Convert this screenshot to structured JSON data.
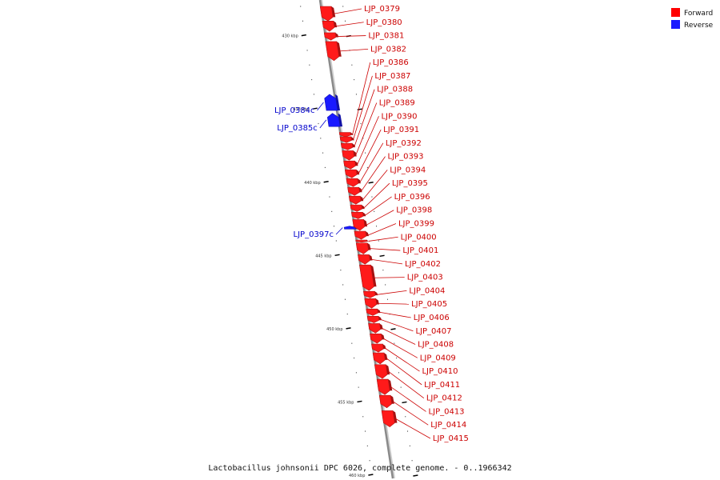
{
  "legend": [
    {
      "label": "Forward",
      "color": "#ff0000"
    },
    {
      "label": "Reverse",
      "color": "#1a1aff"
    }
  ],
  "caption": "Lactobacillus johnsonii DPC 6026, complete genome. - 0..1966342",
  "colors": {
    "forward_fill": "#ff1a1a",
    "forward_label": "#cc0000",
    "reverse_fill": "#1a1aff",
    "reverse_label": "#0000cc",
    "backbone": "#8a8a8a"
  },
  "axis": {
    "start_kbp": 428,
    "end_kbp": 460,
    "major_labels": [
      "430 kbp",
      "435 kbp",
      "440 kbp",
      "445 kbp",
      "450 kbp",
      "455 kbp",
      "460 kbp"
    ]
  },
  "genes": [
    {
      "name": "LJP_0379",
      "strand": "forward",
      "start_kbp": 428.0,
      "end_kbp": 429.0
    },
    {
      "name": "LJP_0380",
      "strand": "forward",
      "start_kbp": 429.0,
      "end_kbp": 429.7
    },
    {
      "name": "LJP_0381",
      "strand": "forward",
      "start_kbp": 429.8,
      "end_kbp": 430.3
    },
    {
      "name": "LJP_0382",
      "strand": "forward",
      "start_kbp": 430.4,
      "end_kbp": 431.7
    },
    {
      "name": "LJP_0384c",
      "strand": "reverse",
      "start_kbp": 434.0,
      "end_kbp": 435.1
    },
    {
      "name": "LJP_0385c",
      "strand": "reverse",
      "start_kbp": 435.3,
      "end_kbp": 436.2
    },
    {
      "name": "LJP_0386",
      "strand": "forward",
      "start_kbp": 436.6,
      "end_kbp": 436.9
    },
    {
      "name": "LJP_0387",
      "strand": "forward",
      "start_kbp": 436.9,
      "end_kbp": 437.3
    },
    {
      "name": "LJP_0388",
      "strand": "forward",
      "start_kbp": 437.35,
      "end_kbp": 437.8
    },
    {
      "name": "LJP_0389",
      "strand": "forward",
      "start_kbp": 437.85,
      "end_kbp": 438.5
    },
    {
      "name": "LJP_0390",
      "strand": "forward",
      "start_kbp": 438.55,
      "end_kbp": 439.1
    },
    {
      "name": "LJP_0391",
      "strand": "forward",
      "start_kbp": 439.15,
      "end_kbp": 439.7
    },
    {
      "name": "LJP_0392",
      "strand": "forward",
      "start_kbp": 439.75,
      "end_kbp": 440.3
    },
    {
      "name": "LJP_0393",
      "strand": "forward",
      "start_kbp": 440.35,
      "end_kbp": 440.9
    },
    {
      "name": "LJP_0394",
      "strand": "forward",
      "start_kbp": 440.95,
      "end_kbp": 441.5
    },
    {
      "name": "LJP_0395",
      "strand": "forward",
      "start_kbp": 441.55,
      "end_kbp": 442.0
    },
    {
      "name": "LJP_0396",
      "strand": "forward",
      "start_kbp": 442.05,
      "end_kbp": 442.5
    },
    {
      "name": "LJP_0397c",
      "strand": "reverse",
      "start_kbp": 443.0,
      "end_kbp": 443.2
    },
    {
      "name": "LJP_0398",
      "strand": "forward",
      "start_kbp": 442.55,
      "end_kbp": 443.3
    },
    {
      "name": "LJP_0399",
      "strand": "forward",
      "start_kbp": 443.35,
      "end_kbp": 443.9
    },
    {
      "name": "LJP_0400",
      "strand": "forward",
      "start_kbp": 443.95,
      "end_kbp": 444.1
    },
    {
      "name": "LJP_0401",
      "strand": "forward",
      "start_kbp": 444.15,
      "end_kbp": 444.9
    },
    {
      "name": "LJP_0402",
      "strand": "forward",
      "start_kbp": 444.95,
      "end_kbp": 445.6
    },
    {
      "name": "LJP_0403",
      "strand": "forward",
      "start_kbp": 445.65,
      "end_kbp": 447.4
    },
    {
      "name": "LJP_0404",
      "strand": "forward",
      "start_kbp": 447.45,
      "end_kbp": 447.9
    },
    {
      "name": "LJP_0405",
      "strand": "forward",
      "start_kbp": 447.95,
      "end_kbp": 448.6
    },
    {
      "name": "LJP_0406",
      "strand": "forward",
      "start_kbp": 448.65,
      "end_kbp": 449.1
    },
    {
      "name": "LJP_0407",
      "strand": "forward",
      "start_kbp": 449.15,
      "end_kbp": 449.6
    },
    {
      "name": "LJP_0408",
      "strand": "forward",
      "start_kbp": 449.65,
      "end_kbp": 450.3
    },
    {
      "name": "LJP_0409",
      "strand": "forward",
      "start_kbp": 450.35,
      "end_kbp": 451.0
    },
    {
      "name": "LJP_0410",
      "strand": "forward",
      "start_kbp": 451.05,
      "end_kbp": 451.6
    },
    {
      "name": "LJP_0411",
      "strand": "forward",
      "start_kbp": 451.65,
      "end_kbp": 452.4
    },
    {
      "name": "LJP_0412",
      "strand": "forward",
      "start_kbp": 452.45,
      "end_kbp": 453.4
    },
    {
      "name": "LJP_0413",
      "strand": "forward",
      "start_kbp": 453.45,
      "end_kbp": 454.5
    },
    {
      "name": "LJP_0414",
      "strand": "forward",
      "start_kbp": 454.55,
      "end_kbp": 455.4
    },
    {
      "name": "LJP_0415",
      "strand": "forward",
      "start_kbp": 455.6,
      "end_kbp": 456.7
    }
  ]
}
